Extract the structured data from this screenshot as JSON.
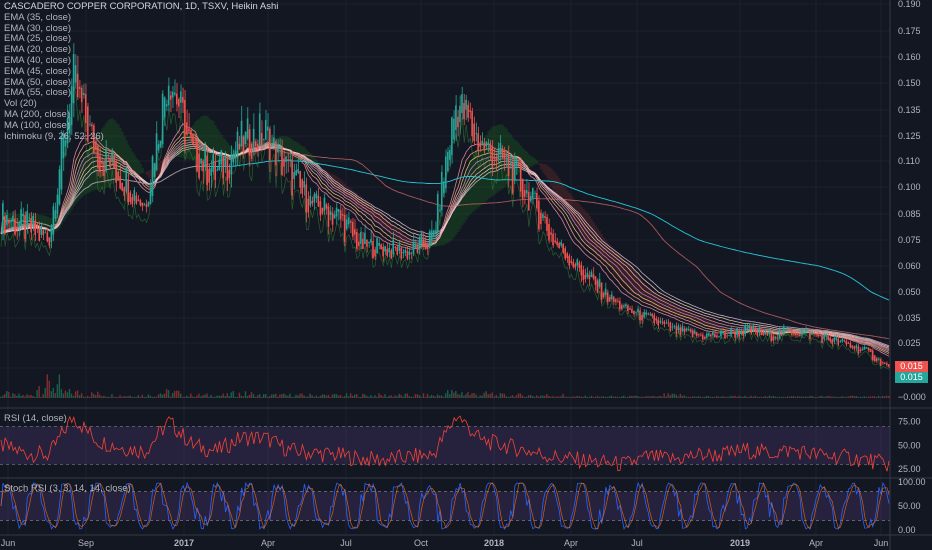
{
  "header": {
    "title": "CASCADERO COPPER CORPORATION, 1D, TSXV, Heikin Ashi",
    "indicators": [
      "EMA (35, close)",
      "EMA (30, close)",
      "EMA (25, close)",
      "EMA (20, close)",
      "EMA (40, close)",
      "EMA (45, close)",
      "EMA (50, close)",
      "EMA (55, close)",
      "Vol (20)",
      "MA (200, close)",
      "MA (100, close)",
      "Ichimoku (9, 26, 52, 26)"
    ]
  },
  "panes": {
    "rsi_label": "RSI (14, close)",
    "stoch_label": "Stoch RSI (3, 3, 14, 14, close)"
  },
  "price_tags": {
    "last_price": "0.015",
    "secondary_price": "0.015"
  },
  "colors": {
    "background": "#131722",
    "up": "#26a69a",
    "down": "#ef5350",
    "rsi": "#f44336",
    "band": "#7e57c2",
    "stoch_k": "#2962ff",
    "stoch_d": "#ff6d00"
  },
  "chart_data": [
    {
      "type": "candlestick",
      "title": "CASCADERO COPPER CORPORATION, 1D, TSXV, Heikin Ashi",
      "x_tick_labels": [
        "Jun",
        "Sep",
        "2017",
        "Apr",
        "Jul",
        "Oct",
        "2018",
        "Apr",
        "Jul",
        "2019",
        "Apr",
        "Jun"
      ],
      "y_tick_labels": [
        "0.190",
        "0.175",
        "0.160",
        "0.150",
        "0.135",
        "0.125",
        "0.110",
        "0.100",
        "0.085",
        "0.075",
        "0.060",
        "0.050",
        "0.035",
        "0.025",
        "0.015",
        "0.000"
      ],
      "ylim": [
        0,
        0.19
      ],
      "x": [
        "Jun 2016",
        "Jul 2016",
        "Aug 2016",
        "Sep 2016",
        "Oct 2016",
        "Nov 2016",
        "Dec 2016",
        "Jan 2017",
        "Feb 2017",
        "Mar 2017",
        "Apr 2017",
        "May 2017",
        "Jun 2017",
        "Jul 2017",
        "Aug 2017",
        "Sep 2017",
        "Oct 2017",
        "Nov 2017",
        "Dec 2017",
        "Jan 2018",
        "Feb 2018",
        "Mar 2018",
        "Apr 2018",
        "May 2018",
        "Jun 2018",
        "Jul 2018",
        "Aug 2018",
        "Sep 2018",
        "Oct 2018",
        "Nov 2018",
        "Dec 2018",
        "Jan 2019",
        "Feb 2019",
        "Mar 2019",
        "Apr 2019",
        "May 2019",
        "Jun 2019",
        "Jul 2019"
      ],
      "close": [
        0.085,
        0.08,
        0.075,
        0.15,
        0.115,
        0.105,
        0.09,
        0.155,
        0.115,
        0.105,
        0.12,
        0.125,
        0.105,
        0.09,
        0.085,
        0.072,
        0.07,
        0.068,
        0.075,
        0.14,
        0.12,
        0.11,
        0.095,
        0.075,
        0.06,
        0.05,
        0.04,
        0.035,
        0.03,
        0.028,
        0.028,
        0.03,
        0.028,
        0.03,
        0.028,
        0.025,
        0.022,
        0.015
      ],
      "volume_relative": [
        0.3,
        0.2,
        1.0,
        0.4,
        0.3,
        0.2,
        0.2,
        0.4,
        0.2,
        0.2,
        0.3,
        0.2,
        0.2,
        0.2,
        0.2,
        0.2,
        0.2,
        0.2,
        0.2,
        0.4,
        0.3,
        0.2,
        0.2,
        0.2,
        0.1,
        0.1,
        0.1,
        0.1,
        0.2,
        0.1,
        0.1,
        0.1,
        0.1,
        0.1,
        0.1,
        0.1,
        0.1,
        0.1
      ]
    },
    {
      "type": "line",
      "title": "RSI (14, close)",
      "y_tick_labels": [
        "75.00",
        "50.00",
        "25.00"
      ],
      "ylim": [
        20,
        85
      ],
      "band": [
        30,
        70
      ],
      "values": [
        50,
        42,
        40,
        80,
        55,
        48,
        44,
        75,
        50,
        44,
        58,
        58,
        45,
        42,
        40,
        36,
        35,
        38,
        40,
        82,
        55,
        50,
        44,
        38,
        35,
        32,
        30,
        38,
        35,
        40,
        40,
        45,
        42,
        45,
        40,
        38,
        35,
        30
      ]
    },
    {
      "type": "line",
      "title": "Stoch RSI (3, 3, 14, 14, close)",
      "y_tick_labels": [
        "100.00",
        "50.00",
        "0.00"
      ],
      "ylim": [
        0,
        100
      ],
      "band": [
        20,
        80
      ]
    }
  ]
}
